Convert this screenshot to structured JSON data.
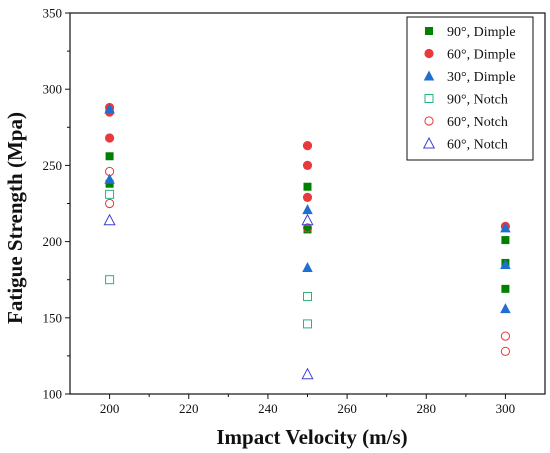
{
  "chart_data": {
    "type": "scatter",
    "xlabel": "Impact Velocity (m/s)",
    "ylabel": "Fatigue Strength (Mpa)",
    "xlim": [
      190,
      310
    ],
    "ylim": [
      100,
      350
    ],
    "x_ticks": [
      200,
      220,
      240,
      260,
      280,
      300
    ],
    "y_ticks": [
      100,
      150,
      200,
      250,
      300,
      350
    ],
    "grid": false,
    "legend_position": "top-right",
    "series": [
      {
        "name": "90°, Dimple",
        "marker": "square",
        "filled": true,
        "color": "#008000",
        "points": [
          [
            200,
            256
          ],
          [
            200,
            238
          ],
          [
            250,
            236
          ],
          [
            250,
            208
          ],
          [
            300,
            201
          ],
          [
            300,
            186
          ],
          [
            300,
            169
          ]
        ]
      },
      {
        "name": "60°, Dimple",
        "marker": "circle",
        "filled": true,
        "color": "#e8393c",
        "points": [
          [
            200,
            288
          ],
          [
            200,
            285
          ],
          [
            200,
            268
          ],
          [
            250,
            263
          ],
          [
            250,
            250
          ],
          [
            250,
            229
          ],
          [
            300,
            210
          ]
        ]
      },
      {
        "name": "30°, Dimple",
        "marker": "triangle",
        "filled": true,
        "color": "#1f6fd1",
        "points": [
          [
            200,
            287
          ],
          [
            200,
            241
          ],
          [
            250,
            221
          ],
          [
            250,
            183
          ],
          [
            300,
            209
          ],
          [
            300,
            185
          ],
          [
            300,
            156
          ]
        ]
      },
      {
        "name": "90°, Notch",
        "marker": "square",
        "filled": false,
        "color": "#26b57a",
        "points": [
          [
            200,
            231
          ],
          [
            200,
            175
          ],
          [
            250,
            164
          ],
          [
            250,
            146
          ]
        ]
      },
      {
        "name": "60°, Notch",
        "marker": "circle",
        "filled": false,
        "color": "#e8393c",
        "points": [
          [
            200,
            246
          ],
          [
            200,
            225
          ],
          [
            250,
            209
          ],
          [
            300,
            138
          ],
          [
            300,
            128
          ]
        ]
      },
      {
        "name": "60°, Notch",
        "marker": "triangle",
        "filled": false,
        "color": "#3f3fd6",
        "points": [
          [
            200,
            214
          ],
          [
            250,
            214
          ],
          [
            250,
            113
          ]
        ]
      }
    ]
  }
}
